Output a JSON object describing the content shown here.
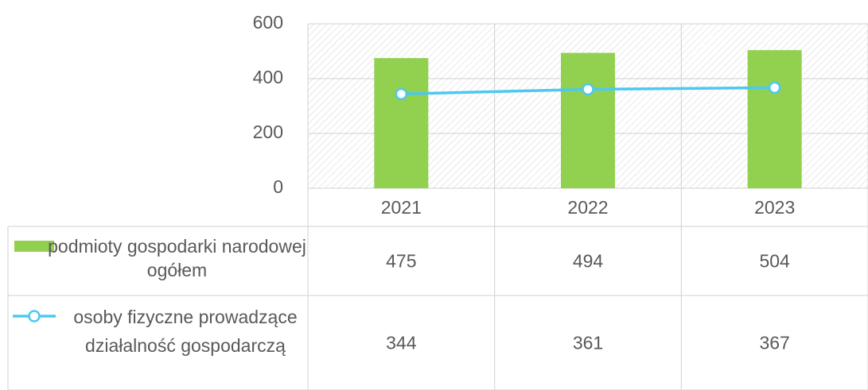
{
  "chart_data": {
    "type": "bar",
    "categories": [
      "2021",
      "2022",
      "2023"
    ],
    "series": [
      {
        "name": "podmioty gospodarki narodowej ogółem",
        "type": "bar",
        "color": "#92d050",
        "values": [
          475,
          494,
          504
        ]
      },
      {
        "name": "osoby fizyczne prowadzące działalność gospodarczą",
        "type": "line",
        "color": "#4dc8f0",
        "values": [
          344,
          361,
          367
        ]
      }
    ],
    "ylim": [
      0,
      600
    ],
    "yticks": [
      0,
      200,
      400,
      600
    ],
    "grid": true
  }
}
